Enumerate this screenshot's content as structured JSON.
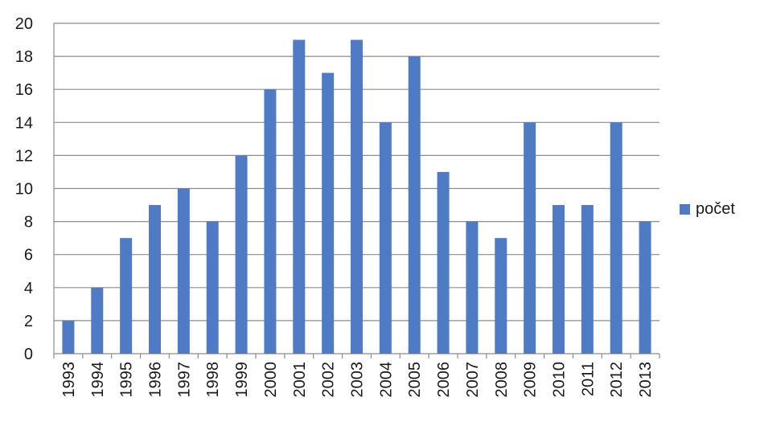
{
  "chart_data": {
    "type": "bar",
    "categories": [
      "1993",
      "1994",
      "1995",
      "1996",
      "1997",
      "1998",
      "1999",
      "2000",
      "2001",
      "2002",
      "2003",
      "2004",
      "2005",
      "2006",
      "2007",
      "2008",
      "2009",
      "2010",
      "2011",
      "2012",
      "2013"
    ],
    "series": [
      {
        "name": "počet",
        "values": [
          2,
          4,
          7,
          9,
          10,
          8,
          12,
          16,
          19,
          17,
          19,
          14,
          18,
          11,
          8,
          7,
          14,
          9,
          9,
          14,
          8
        ]
      }
    ],
    "title": "",
    "xlabel": "",
    "ylabel": "",
    "ylim": [
      0,
      20
    ],
    "yticks": [
      0,
      2,
      4,
      6,
      8,
      10,
      12,
      14,
      16,
      18,
      20
    ],
    "grid": true,
    "legend_position": "right",
    "colors": {
      "bar": "#4f7bc5",
      "grid": "#8c8c8c",
      "axis": "#8c8c8c"
    }
  }
}
